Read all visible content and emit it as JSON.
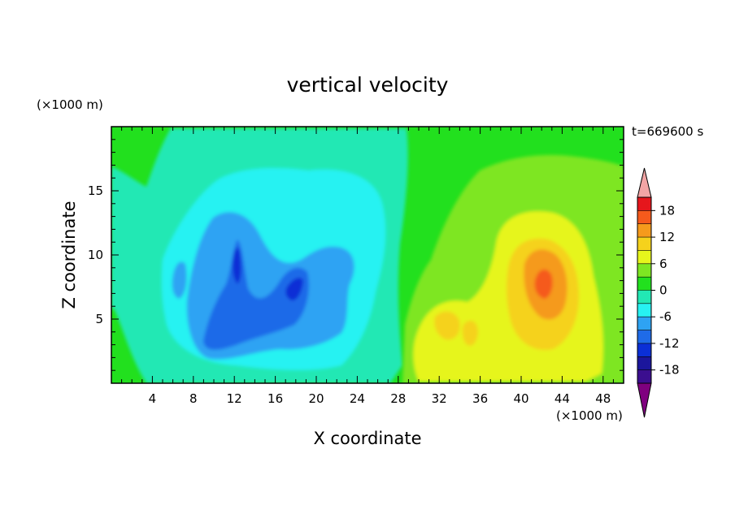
{
  "chart_data": {
    "type": "heatmap",
    "title": "vertical velocity",
    "xlabel": "X coordinate",
    "ylabel": "Z coordinate",
    "x_unit": "(×1000 m)",
    "y_unit": "(×1000 m)",
    "time_label": "t=669600 s",
    "xlim": [
      0,
      50
    ],
    "ylim": [
      0,
      20
    ],
    "x_ticks": [
      4,
      8,
      12,
      16,
      20,
      24,
      28,
      32,
      36,
      40,
      44,
      48
    ],
    "y_ticks": [
      5,
      10,
      15
    ],
    "colorbar": {
      "levels": [
        -21,
        -18,
        -15,
        -12,
        -9,
        -6,
        -3,
        0,
        3,
        6,
        9,
        12,
        15,
        18,
        21
      ],
      "tick_labels": [
        "18",
        "12",
        "6",
        "0",
        "-6",
        "-12",
        "-18"
      ],
      "tick_values": [
        18,
        12,
        6,
        0,
        -6,
        -12,
        -18
      ],
      "colors": [
        "#7f007f",
        "#3b0e8f",
        "#1b169c",
        "#0b2fd6",
        "#1f6be8",
        "#2ea3f3",
        "#27f2f2",
        "#22e8b4",
        "#22e01e",
        "#7ee622",
        "#e6f51c",
        "#f5d21c",
        "#f59a1c",
        "#f55a1c",
        "#e6161c",
        "#f2a5a5"
      ],
      "under_color": "#7f007f",
      "over_color": "#f2a5a5"
    },
    "features": [
      {
        "kind": "downdraft",
        "x": [
          9,
          26
        ],
        "z": [
          1,
          15
        ],
        "min_w": -14
      },
      {
        "kind": "updraft",
        "x": [
          30,
          48
        ],
        "z": [
          1,
          16
        ],
        "max_w": 15
      }
    ]
  }
}
